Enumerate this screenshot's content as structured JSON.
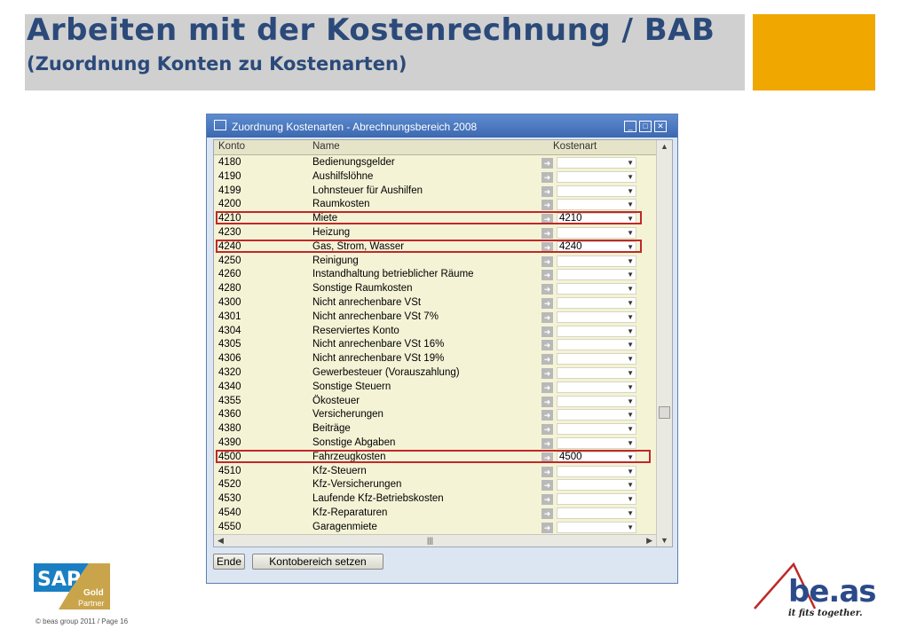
{
  "slide": {
    "title_line1": "Arbeiten mit der Kostenrechnung / BAB",
    "title_line2": "(Zuordnung Konten zu Kostenarten)",
    "accent_color": "#f0a800",
    "footer": "© beas group 2011 / Page 16"
  },
  "window": {
    "title": "Zuordnung Kostenarten - Abrechnungsbereich 2008",
    "columns": {
      "konto": "Konto",
      "name": "Name",
      "kostenart": "Kostenart"
    },
    "rows": [
      {
        "konto": "4180",
        "name": "Bedienungsgelder",
        "kostenart": "",
        "highlight": false
      },
      {
        "konto": "4190",
        "name": "Aushilfslöhne",
        "kostenart": "",
        "highlight": false
      },
      {
        "konto": "4199",
        "name": "Lohnsteuer für Aushilfen",
        "kostenart": "",
        "highlight": false
      },
      {
        "konto": "4200",
        "name": "Raumkosten",
        "kostenart": "",
        "highlight": false
      },
      {
        "konto": "4210",
        "name": "Miete",
        "kostenart": "4210",
        "highlight": true
      },
      {
        "konto": "4230",
        "name": "Heizung",
        "kostenart": "",
        "highlight": false
      },
      {
        "konto": "4240",
        "name": "Gas, Strom, Wasser",
        "kostenart": "4240",
        "highlight": true
      },
      {
        "konto": "4250",
        "name": "Reinigung",
        "kostenart": "",
        "highlight": false
      },
      {
        "konto": "4260",
        "name": "Instandhaltung betrieblicher Räume",
        "kostenart": "",
        "highlight": false
      },
      {
        "konto": "4280",
        "name": "Sonstige Raumkosten",
        "kostenart": "",
        "highlight": false
      },
      {
        "konto": "4300",
        "name": "Nicht anrechenbare VSt",
        "kostenart": "",
        "highlight": false
      },
      {
        "konto": "4301",
        "name": "Nicht anrechenbare VSt 7%",
        "kostenart": "",
        "highlight": false
      },
      {
        "konto": "4304",
        "name": "Reserviertes Konto",
        "kostenart": "",
        "highlight": false
      },
      {
        "konto": "4305",
        "name": "Nicht anrechenbare VSt 16%",
        "kostenart": "",
        "highlight": false
      },
      {
        "konto": "4306",
        "name": "Nicht anrechenbare VSt 19%",
        "kostenart": "",
        "highlight": false
      },
      {
        "konto": "4320",
        "name": "Gewerbesteuer (Vorauszahlung)",
        "kostenart": "",
        "highlight": false
      },
      {
        "konto": "4340",
        "name": "Sonstige Steuern",
        "kostenart": "",
        "highlight": false
      },
      {
        "konto": "4355",
        "name": "Ökosteuer",
        "kostenart": "",
        "highlight": false
      },
      {
        "konto": "4360",
        "name": "Versicherungen",
        "kostenart": "",
        "highlight": false
      },
      {
        "konto": "4380",
        "name": "Beiträge",
        "kostenart": "",
        "highlight": false
      },
      {
        "konto": "4390",
        "name": "Sonstige Abgaben",
        "kostenart": "",
        "highlight": false
      },
      {
        "konto": "4500",
        "name": "Fahrzeugkosten",
        "kostenart": "4500",
        "highlight": true
      },
      {
        "konto": "4510",
        "name": "Kfz-Steuern",
        "kostenart": "",
        "highlight": false
      },
      {
        "konto": "4520",
        "name": "Kfz-Versicherungen",
        "kostenart": "",
        "highlight": false
      },
      {
        "konto": "4530",
        "name": "Laufende Kfz-Betriebskosten",
        "kostenart": "",
        "highlight": false
      },
      {
        "konto": "4540",
        "name": "Kfz-Reparaturen",
        "kostenart": "",
        "highlight": false
      },
      {
        "konto": "4550",
        "name": "Garagenmiete",
        "kostenart": "",
        "highlight": false
      }
    ],
    "buttons": {
      "ende": "Ende",
      "kontobereich": "Kontobereich setzen"
    }
  },
  "logos": {
    "sap_text": "SAP",
    "sap_gold": "Gold",
    "sap_partner": "Partner",
    "beas_text": "be.as",
    "beas_tagline": "it fits together."
  }
}
